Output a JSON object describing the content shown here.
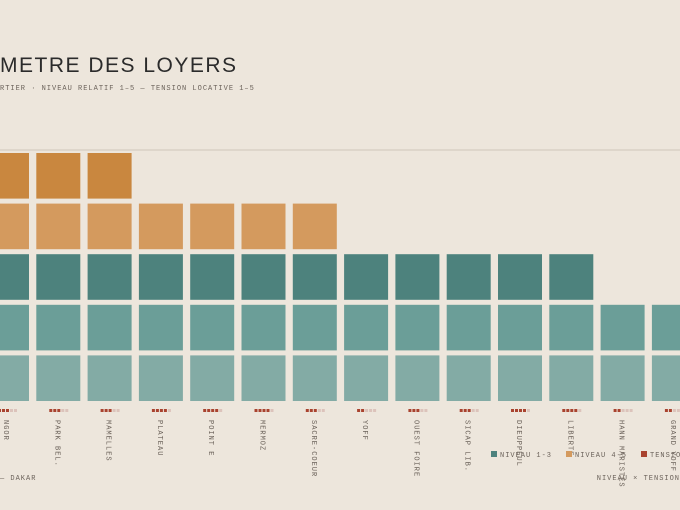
{
  "chart_data": {
    "type": "unit-stack",
    "title": "METRE DES LOYERS",
    "subtitle": "RTIER · NIVEAU RELATIF 1–5 — TENSION LOCATIVE 1–5",
    "categories": [
      "NGOR",
      "PARK BEL.",
      "MAMELLES",
      "PLATEAU",
      "POINT E",
      "MERMOZ",
      "SACRE-COEUR",
      "YOFF",
      "OUEST FOIRE",
      "SICAP LIB.",
      "DIEUPPEUL",
      "LIBERTE",
      "HANN MARISTES",
      "GRAND YOFF"
    ],
    "values": [
      5,
      5,
      5,
      4,
      4,
      4,
      4,
      3,
      3,
      3,
      3,
      3,
      2,
      2
    ],
    "tension": [
      3,
      3,
      3,
      4,
      4,
      4,
      3,
      2,
      3,
      3,
      4,
      4,
      2,
      2
    ],
    "ylim": [
      0,
      5
    ],
    "level_colors": [
      "#83aba5",
      "#6b9e98",
      "#4d827d",
      "#d49a5e",
      "#c9873f"
    ],
    "tension_color": "#a9432f",
    "legend": [
      {
        "name": "NIVEAU 1-3",
        "color": "#4d827d"
      },
      {
        "name": "NIVEAU 4-5",
        "color": "#d49a5e"
      },
      {
        "name": "TENSION",
        "color": "#a9432f"
      }
    ],
    "footer_left": "— DAKAR",
    "footer_right": "NIVEAU × TENSION"
  }
}
